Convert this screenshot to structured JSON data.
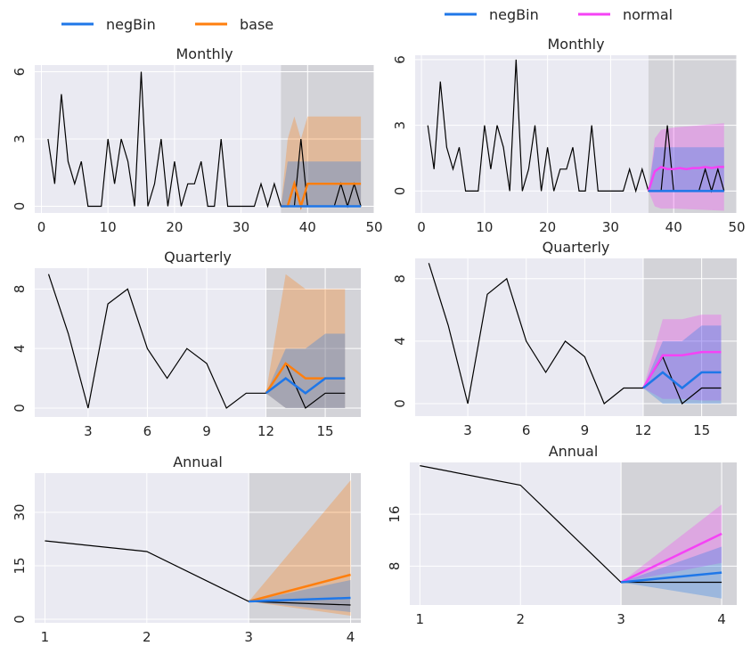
{
  "colors": {
    "negBin": "#1f77e8",
    "base": "#ff7f0e",
    "normal": "#f542f5",
    "history": "#000000",
    "plot_bg": "#eaeaf2",
    "forecast_shade": "#d3d3d8",
    "grid": "#ffffff"
  },
  "legends": [
    {
      "items": [
        {
          "label": "negBin",
          "color_key": "negBin"
        },
        {
          "label": "base",
          "color_key": "base"
        }
      ]
    },
    {
      "items": [
        {
          "label": "negBin",
          "color_key": "negBin"
        },
        {
          "label": "normal",
          "color_key": "normal"
        }
      ]
    }
  ],
  "chart_data": [
    {
      "type": "line",
      "title": "Monthly",
      "xlim": [
        -1,
        50
      ],
      "ylim": [
        -0.3,
        6.3
      ],
      "xticks": [
        0,
        10,
        20,
        30,
        40,
        50
      ],
      "yticks": [
        0,
        3,
        6
      ],
      "forecast_start": 36,
      "history": {
        "x": [
          1,
          2,
          3,
          4,
          5,
          6,
          7,
          8,
          9,
          10,
          11,
          12,
          13,
          14,
          15,
          16,
          17,
          18,
          19,
          20,
          21,
          22,
          23,
          24,
          25,
          26,
          27,
          28,
          29,
          30,
          31,
          32,
          33,
          34,
          35,
          36,
          37,
          38,
          39,
          40,
          41,
          42,
          43,
          44,
          45,
          46,
          47,
          48
        ],
        "y": [
          3,
          1,
          5,
          2,
          1,
          2,
          0,
          0,
          0,
          3,
          1,
          3,
          2,
          0,
          6,
          0,
          1,
          3,
          0,
          2,
          0,
          1,
          1,
          2,
          0,
          0,
          3,
          0,
          0,
          0,
          0,
          0,
          1,
          0,
          1,
          0,
          0,
          0,
          3,
          0,
          0,
          0,
          0,
          0,
          1,
          0,
          1,
          0
        ]
      },
      "series": [
        {
          "name": "base",
          "color_key": "base",
          "x": [
            36,
            37,
            38,
            39,
            40,
            41,
            42,
            43,
            44,
            45,
            46,
            47,
            48
          ],
          "y": [
            0,
            0,
            1,
            0,
            1,
            1,
            1,
            1,
            1,
            1,
            1,
            1,
            1
          ],
          "band": {
            "x": [
              36,
              37,
              38,
              39,
              40,
              41,
              42,
              43,
              44,
              45,
              46,
              47,
              48
            ],
            "lower": [
              0,
              0,
              0,
              0,
              0,
              0,
              0,
              0,
              0,
              0,
              0,
              0,
              0
            ],
            "upper": [
              0,
              3,
              4,
              3,
              4,
              4,
              4,
              4,
              4,
              4,
              4,
              4,
              4
            ]
          }
        },
        {
          "name": "negBin",
          "color_key": "negBin",
          "x": [
            36,
            37,
            38,
            39,
            40,
            41,
            42,
            43,
            44,
            45,
            46,
            47,
            48
          ],
          "y": [
            0,
            0,
            0,
            0,
            0,
            0,
            0,
            0,
            0,
            0,
            0,
            0,
            0
          ],
          "band": {
            "x": [
              36,
              37,
              48
            ],
            "lower": [
              0,
              0,
              0
            ],
            "upper": [
              0,
              2,
              2
            ]
          }
        }
      ]
    },
    {
      "type": "line",
      "title": "Monthly",
      "xlim": [
        -1,
        50
      ],
      "ylim": [
        -1,
        6.2
      ],
      "xticks": [
        0,
        10,
        20,
        30,
        40,
        50
      ],
      "yticks": [
        0,
        3,
        6
      ],
      "forecast_start": 36,
      "history": {
        "x": [
          1,
          2,
          3,
          4,
          5,
          6,
          7,
          8,
          9,
          10,
          11,
          12,
          13,
          14,
          15,
          16,
          17,
          18,
          19,
          20,
          21,
          22,
          23,
          24,
          25,
          26,
          27,
          28,
          29,
          30,
          31,
          32,
          33,
          34,
          35,
          36,
          37,
          38,
          39,
          40,
          41,
          42,
          43,
          44,
          45,
          46,
          47,
          48
        ],
        "y": [
          3,
          1,
          5,
          2,
          1,
          2,
          0,
          0,
          0,
          3,
          1,
          3,
          2,
          0,
          6,
          0,
          1,
          3,
          0,
          2,
          0,
          1,
          1,
          2,
          0,
          0,
          3,
          0,
          0,
          0,
          0,
          0,
          1,
          0,
          1,
          0,
          0,
          0,
          3,
          0,
          0,
          0,
          0,
          0,
          1,
          0,
          1,
          0
        ]
      },
      "series": [
        {
          "name": "normal",
          "color_key": "normal",
          "x": [
            36,
            37,
            38,
            39,
            40,
            41,
            42,
            43,
            44,
            45,
            46,
            47,
            48
          ],
          "y": [
            0,
            0.9,
            1.1,
            1.0,
            1.0,
            1.05,
            1.0,
            1.05,
            1.05,
            1.1,
            1.05,
            1.1,
            1.1
          ],
          "band": {
            "x": [
              36,
              37,
              38,
              40,
              44,
              48
            ],
            "lower": [
              0,
              -0.7,
              -0.8,
              -0.8,
              -0.85,
              -0.9
            ],
            "upper": [
              0,
              2.4,
              2.8,
              2.9,
              3.0,
              3.1
            ]
          }
        },
        {
          "name": "negBin",
          "color_key": "negBin",
          "x": [
            36,
            37,
            48
          ],
          "y": [
            0,
            0,
            0
          ],
          "band": {
            "x": [
              36,
              37,
              48
            ],
            "lower": [
              0,
              0,
              0
            ],
            "upper": [
              0,
              2,
              2
            ]
          }
        }
      ]
    },
    {
      "type": "line",
      "title": "Quarterly",
      "xlim": [
        0.3,
        16.8
      ],
      "ylim": [
        -0.6,
        9.4
      ],
      "xticks": [
        3,
        6,
        9,
        12,
        15
      ],
      "yticks": [
        0,
        4,
        8
      ],
      "forecast_start": 12,
      "history": {
        "x": [
          1,
          2,
          3,
          4,
          5,
          6,
          7,
          8,
          9,
          10,
          11,
          12,
          13,
          14,
          15,
          16
        ],
        "y": [
          9,
          5,
          0,
          7,
          8,
          4,
          2,
          4,
          3,
          0,
          1,
          1,
          3,
          0,
          1,
          1
        ]
      },
      "series": [
        {
          "name": "base",
          "color_key": "base",
          "x": [
            12,
            13,
            14,
            15,
            16
          ],
          "y": [
            1,
            3,
            2,
            2,
            2
          ],
          "band": {
            "x": [
              12,
              13,
              14,
              15,
              16
            ],
            "lower": [
              1,
              0,
              0,
              0,
              0
            ],
            "upper": [
              1,
              9,
              8,
              8,
              8
            ]
          }
        },
        {
          "name": "negBin",
          "color_key": "negBin",
          "x": [
            12,
            13,
            14,
            15,
            16
          ],
          "y": [
            1,
            2,
            1,
            2,
            2
          ],
          "band": {
            "x": [
              12,
              13,
              14,
              15,
              16
            ],
            "lower": [
              1,
              0,
              0,
              0,
              0
            ],
            "upper": [
              1,
              4,
              4,
              5,
              5
            ]
          }
        }
      ]
    },
    {
      "type": "line",
      "title": "Quarterly",
      "xlim": [
        0.3,
        16.8
      ],
      "ylim": [
        -0.8,
        9.3
      ],
      "xticks": [
        3,
        6,
        9,
        12,
        15
      ],
      "yticks": [
        0,
        4,
        8
      ],
      "forecast_start": 12,
      "history": {
        "x": [
          1,
          2,
          3,
          4,
          5,
          6,
          7,
          8,
          9,
          10,
          11,
          12,
          13,
          14,
          15,
          16
        ],
        "y": [
          9,
          5,
          0,
          7,
          8,
          4,
          2,
          4,
          3,
          0,
          1,
          1,
          3,
          0,
          1,
          1
        ]
      },
      "series": [
        {
          "name": "normal",
          "color_key": "normal",
          "x": [
            12,
            13,
            14,
            15,
            16
          ],
          "y": [
            1,
            3.1,
            3.1,
            3.3,
            3.3
          ],
          "band": {
            "x": [
              12,
              13,
              14,
              15,
              16
            ],
            "lower": [
              1,
              0.3,
              0.3,
              0.2,
              0.2
            ],
            "upper": [
              1,
              5.4,
              5.4,
              5.7,
              5.7
            ]
          }
        },
        {
          "name": "negBin",
          "color_key": "negBin",
          "x": [
            12,
            13,
            14,
            15,
            16
          ],
          "y": [
            1,
            2,
            1,
            2,
            2
          ],
          "band": {
            "x": [
              12,
              13,
              14,
              15,
              16
            ],
            "lower": [
              1,
              0,
              0,
              0,
              0
            ],
            "upper": [
              1,
              4,
              4,
              5,
              5
            ]
          }
        }
      ]
    },
    {
      "type": "line",
      "title": "Annual",
      "xlim": [
        0.9,
        4.1
      ],
      "ylim": [
        -1,
        41
      ],
      "xticks": [
        1,
        2,
        3,
        4
      ],
      "yticks": [
        0,
        15,
        30
      ],
      "forecast_start": 3,
      "history": {
        "x": [
          1,
          2,
          3,
          4
        ],
        "y": [
          22,
          19,
          5,
          4
        ]
      },
      "series": [
        {
          "name": "base",
          "color_key": "base",
          "x": [
            3,
            4
          ],
          "y": [
            5,
            12.5
          ],
          "band": {
            "x": [
              3,
              4
            ],
            "lower": [
              5,
              1
            ],
            "upper": [
              5,
              39
            ]
          }
        },
        {
          "name": "negBin",
          "color_key": "negBin",
          "x": [
            3,
            4
          ],
          "y": [
            5,
            6
          ],
          "band": {
            "x": [
              3,
              4
            ],
            "lower": [
              5,
              2
            ],
            "upper": [
              5,
              11
            ]
          }
        }
      ]
    },
    {
      "type": "line",
      "title": "Annual",
      "xlim": [
        0.9,
        4.15
      ],
      "ylim": [
        2,
        24
      ],
      "xticks": [
        1,
        2,
        3,
        4
      ],
      "yticks": [
        8,
        16
      ],
      "forecast_start": 3,
      "history": {
        "x": [
          1,
          2,
          3,
          4
        ],
        "y": [
          23.5,
          20.5,
          5.5,
          5.5
        ]
      },
      "series": [
        {
          "name": "normal",
          "color_key": "normal",
          "x": [
            3,
            4
          ],
          "y": [
            5.5,
            13
          ],
          "band": {
            "x": [
              3,
              4
            ],
            "lower": [
              5.5,
              8.5
            ],
            "upper": [
              5.5,
              17.5
            ]
          }
        },
        {
          "name": "negBin",
          "color_key": "negBin",
          "x": [
            3,
            4
          ],
          "y": [
            5.5,
            7
          ],
          "band": {
            "x": [
              3,
              4
            ],
            "lower": [
              5.5,
              3
            ],
            "upper": [
              5.5,
              11
            ]
          }
        }
      ]
    }
  ]
}
